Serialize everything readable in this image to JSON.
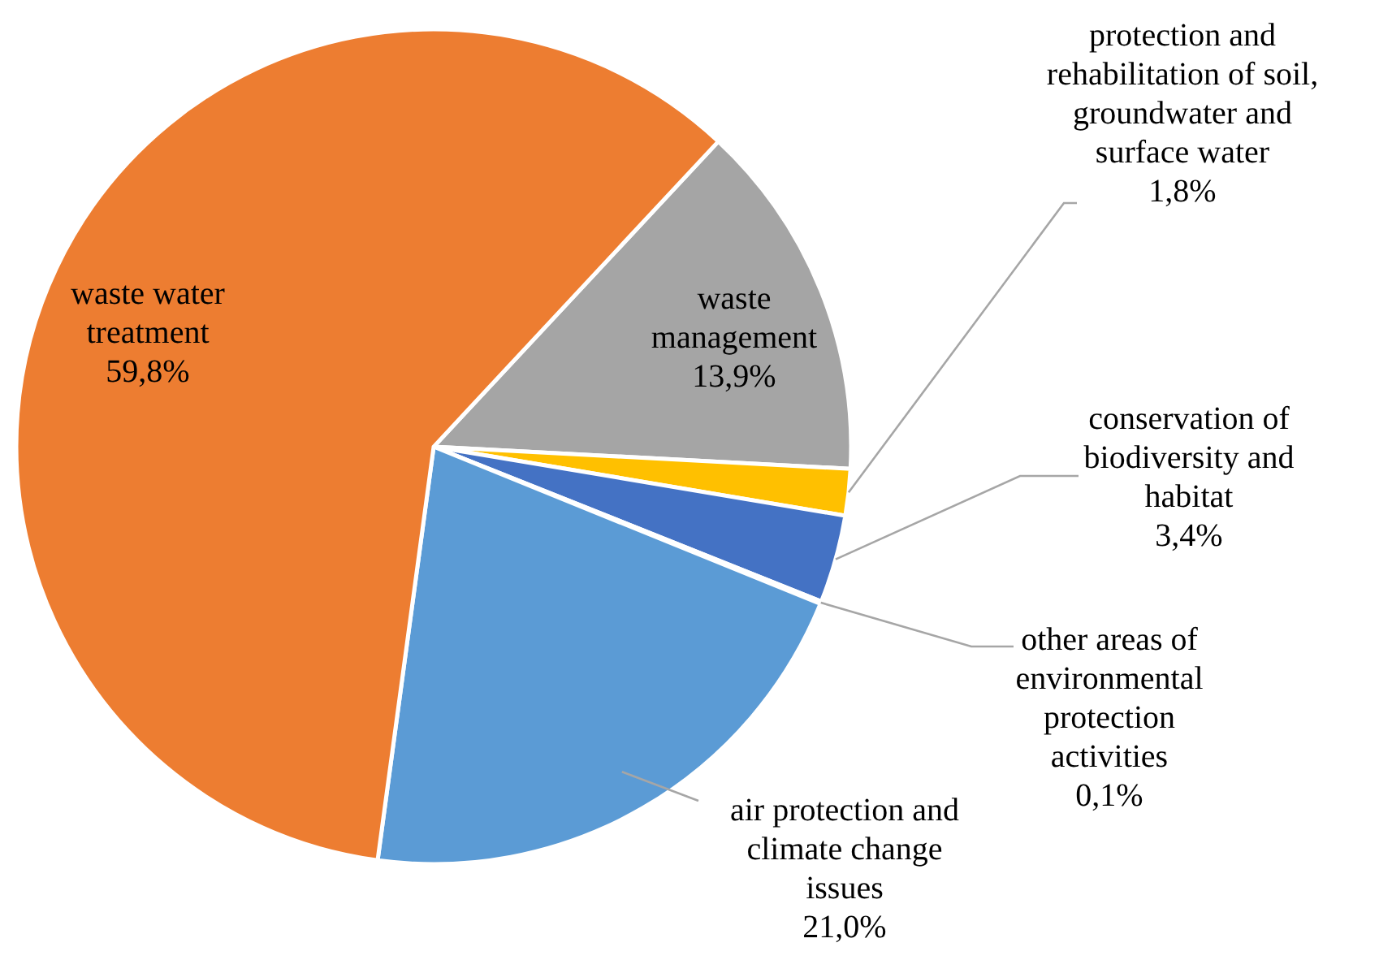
{
  "chart_data": {
    "type": "pie",
    "categories": [
      "waste management",
      "protection and rehabilitation of soil, groundwater and surface water",
      "conservation of biodiversity and habitat",
      "other areas of environmental protection activities",
      "air protection and climate change issues",
      "waste water treatment"
    ],
    "values": [
      13.9,
      1.8,
      3.4,
      0.1,
      21.0,
      59.8
    ],
    "colors": [
      "#a5a5a5",
      "#ffc000",
      "#4472c4",
      "#264478",
      "#5b9bd5",
      "#ed7d31"
    ],
    "value_labels": [
      "13,9%",
      "1,8%",
      "3,4%",
      "0,1%",
      "21,0%",
      "59,8%"
    ]
  }
}
